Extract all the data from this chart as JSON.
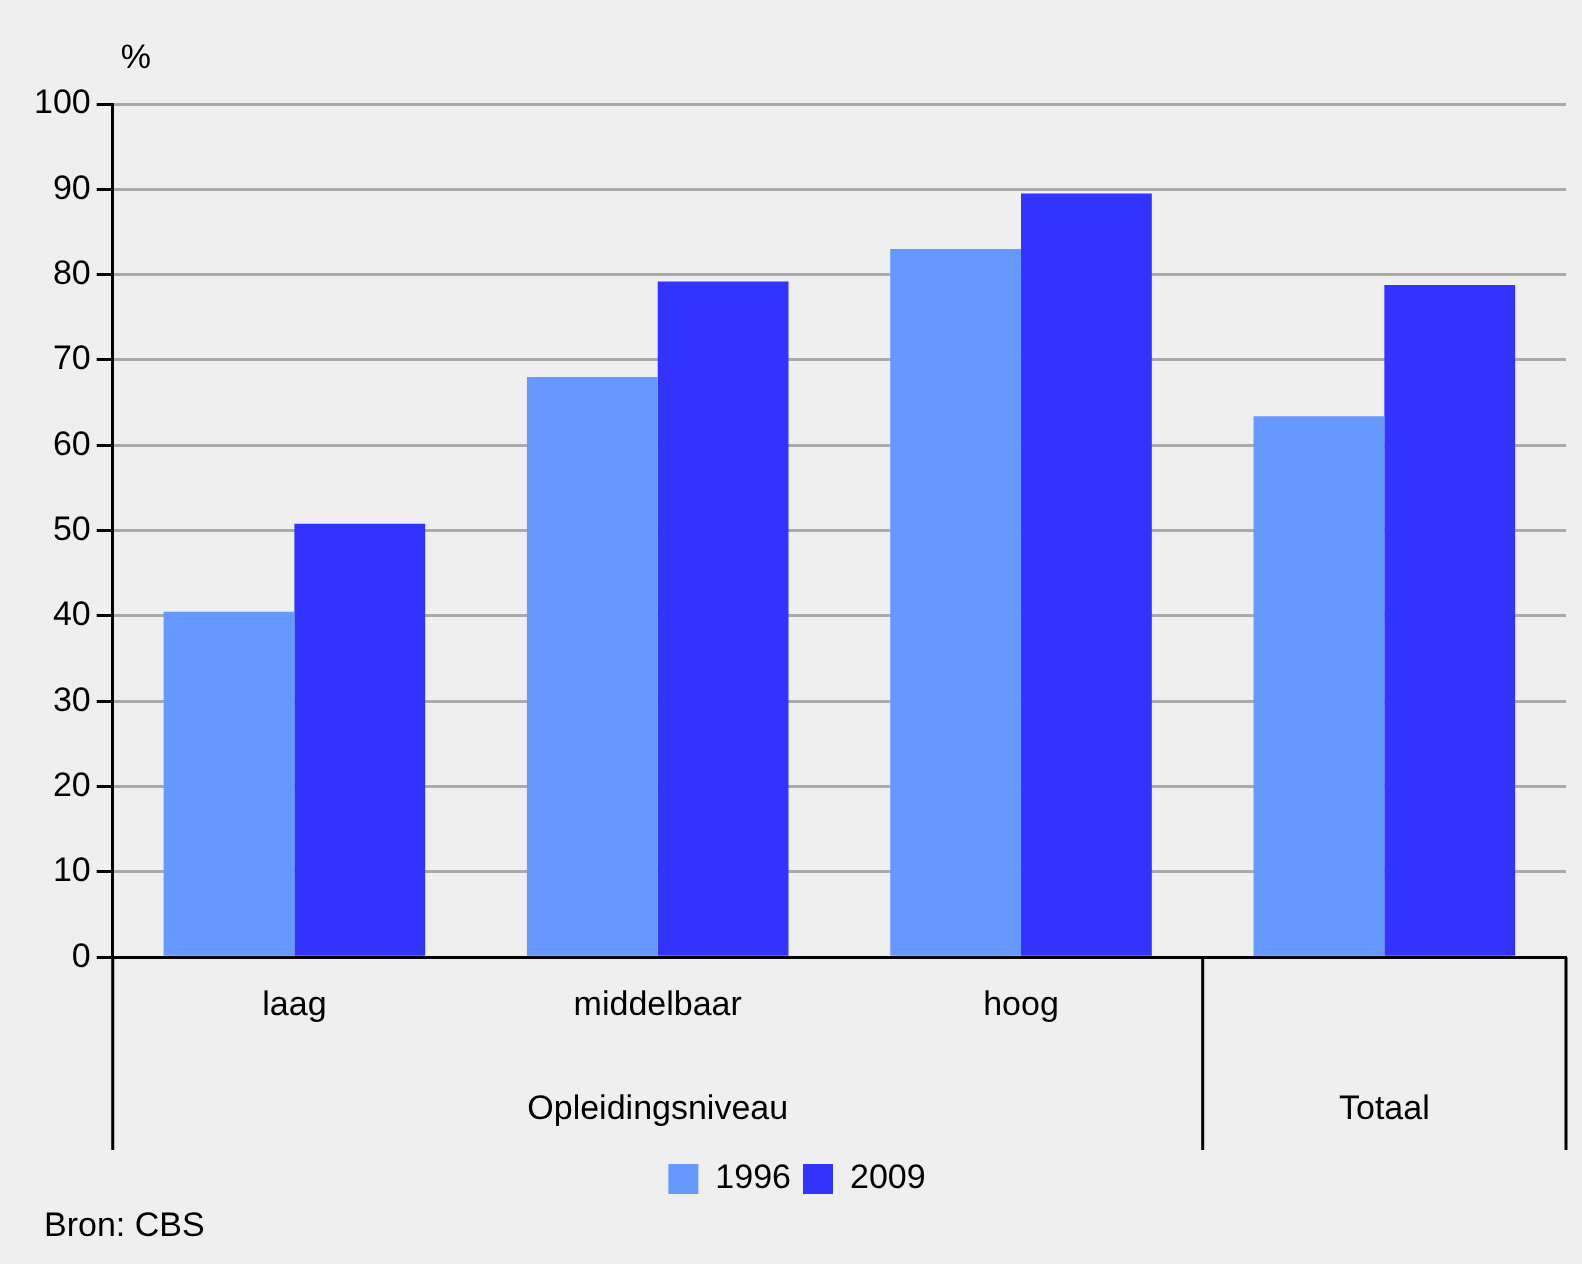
{
  "chart_data": {
    "type": "bar",
    "ylabel": "%",
    "categories": [
      "laag",
      "middelbaar",
      "hoog",
      null
    ],
    "series": [
      {
        "name": "1996",
        "color": "#6699ff",
        "values": [
          40.5,
          68,
          83,
          63.4
        ]
      },
      {
        "name": "2009",
        "color": "#3333ff",
        "values": [
          50.8,
          79.2,
          89.5,
          78.8
        ]
      }
    ],
    "ylim": [
      0,
      100
    ],
    "yticks": [
      0,
      10,
      20,
      30,
      40,
      50,
      60,
      70,
      80,
      90,
      100
    ],
    "grid": "y",
    "legend": "bottom",
    "annotations": [
      "Opleidingsniveau",
      "Totaal",
      "Bron: CBS"
    ]
  }
}
